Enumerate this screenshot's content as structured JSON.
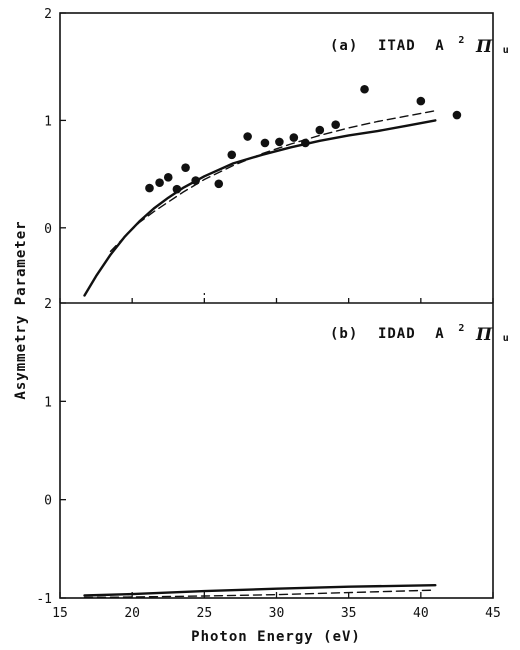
{
  "chart_data": {
    "type": "line",
    "xlabel": "Photon Energy (eV)",
    "ylabel": "Asymmetry Parameter",
    "xlim": [
      15,
      45
    ],
    "x_ticks": [
      "15",
      "20",
      "25",
      "30",
      "35",
      "40",
      "45"
    ],
    "grid": false,
    "panels": [
      {
        "id": "a",
        "label": {
          "prefix": "(a)",
          "name": "ITAD",
          "state": "A",
          "sup": "2",
          "greek": "Π",
          "sub": "u"
        },
        "label_position": "top-right",
        "ylim": [
          -0.7,
          2
        ],
        "y_ticks": [
          "2",
          "1",
          "0"
        ],
        "series": [
          {
            "style": "solid",
            "x": [
              16.7,
              17.5,
              18.5,
              19.5,
              20.5,
              21.5,
              22.5,
              23.5,
              25,
              27,
              29,
              31,
              33,
              35,
              37,
              39,
              41
            ],
            "y": [
              -0.63,
              -0.45,
              -0.25,
              -0.08,
              0.06,
              0.18,
              0.28,
              0.37,
              0.48,
              0.6,
              0.68,
              0.75,
              0.81,
              0.86,
              0.9,
              0.95,
              1.0
            ]
          },
          {
            "style": "dashed",
            "x": [
              18.5,
              19.5,
              20.5,
              21.5,
              22.5,
              23.5,
              25,
              27,
              29,
              31,
              33,
              35,
              37,
              39,
              41
            ],
            "y": [
              -0.22,
              -0.08,
              0.05,
              0.15,
              0.24,
              0.33,
              0.45,
              0.58,
              0.69,
              0.78,
              0.86,
              0.93,
              0.99,
              1.04,
              1.09
            ]
          },
          {
            "style": "points",
            "x": [
              21.2,
              21.9,
              22.5,
              23.1,
              23.7,
              24.4,
              26.0,
              26.9,
              28.0,
              29.2,
              30.2,
              31.2,
              32.0,
              33.0,
              34.1,
              36.1,
              40.0,
              42.5
            ],
            "y": [
              0.37,
              0.42,
              0.47,
              0.36,
              0.56,
              0.44,
              0.41,
              0.68,
              0.85,
              0.79,
              0.8,
              0.84,
              0.79,
              0.91,
              0.96,
              1.29,
              1.18,
              1.05
            ]
          }
        ]
      },
      {
        "id": "b",
        "label": {
          "prefix": "(b)",
          "name": "IDAD",
          "state": "A",
          "sup": "2",
          "greek": "Π",
          "sub": "u"
        },
        "label_position": "top-right",
        "ylim": [
          -1,
          2
        ],
        "y_ticks": [
          "2",
          "1",
          "0",
          "-1"
        ],
        "series": [
          {
            "style": "solid",
            "x": [
              16.7,
              20,
              25,
              30,
              35,
              41
            ],
            "y": [
              -0.975,
              -0.96,
              -0.93,
              -0.905,
              -0.885,
              -0.87
            ]
          },
          {
            "style": "dashed",
            "x": [
              16.7,
              20,
              25,
              30,
              35,
              41
            ],
            "y": [
              -0.995,
              -0.99,
              -0.98,
              -0.965,
              -0.945,
              -0.92
            ]
          }
        ]
      }
    ]
  }
}
